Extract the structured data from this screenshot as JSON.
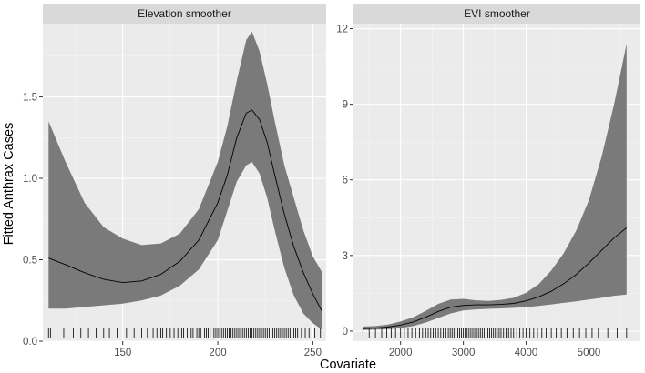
{
  "xlabel": "Covariate",
  "ylabel": "Fitted Anthrax Cases",
  "colors": {
    "panel_bg": "#ebebeb",
    "strip_bg": "#d9d9d9",
    "grid_major": "#ffffff",
    "ribbon": "#7a7a7a",
    "line": "#000000",
    "rug": "#000000"
  },
  "chart_data": [
    {
      "type": "line",
      "title": "Elevation smoother",
      "xlim": [
        108,
        257
      ],
      "ylim": [
        0,
        1.95
      ],
      "xticks": [
        150,
        200,
        250
      ],
      "yticks": [
        0.0,
        0.5,
        1.0,
        1.5
      ],
      "ytick_labels": [
        "0.0",
        "0.5",
        "1.0",
        "1.5"
      ],
      "x": [
        111,
        120,
        130,
        140,
        150,
        160,
        170,
        180,
        190,
        200,
        205,
        210,
        215,
        218,
        222,
        226,
        230,
        235,
        240,
        245,
        250,
        255
      ],
      "fit": [
        0.51,
        0.47,
        0.42,
        0.38,
        0.36,
        0.37,
        0.41,
        0.49,
        0.62,
        0.85,
        1.02,
        1.25,
        1.4,
        1.42,
        1.36,
        1.22,
        1.02,
        0.78,
        0.58,
        0.42,
        0.29,
        0.18
      ],
      "lower": [
        0.2,
        0.2,
        0.21,
        0.22,
        0.23,
        0.25,
        0.28,
        0.34,
        0.44,
        0.62,
        0.8,
        0.98,
        1.08,
        1.1,
        1.03,
        0.88,
        0.68,
        0.45,
        0.28,
        0.17,
        0.11,
        0.07
      ],
      "upper": [
        1.35,
        1.1,
        0.85,
        0.7,
        0.63,
        0.59,
        0.6,
        0.66,
        0.81,
        1.1,
        1.32,
        1.6,
        1.85,
        1.9,
        1.78,
        1.58,
        1.35,
        1.08,
        0.88,
        0.68,
        0.52,
        0.42
      ],
      "rug": [
        111,
        112,
        119,
        124,
        128,
        132,
        136,
        140,
        143,
        147,
        152,
        156,
        160,
        163,
        166,
        168,
        170,
        171,
        173,
        175,
        177,
        179,
        181,
        182,
        184,
        186,
        187,
        189,
        190,
        191,
        193,
        194,
        195,
        196,
        198,
        199,
        200,
        201,
        202,
        203,
        204,
        205,
        206,
        207,
        208,
        209,
        210,
        211,
        212,
        213,
        214,
        215,
        216,
        217,
        218,
        219,
        220,
        221,
        222,
        223,
        224,
        225,
        226,
        227,
        228,
        229,
        230,
        231,
        232,
        233,
        234,
        235,
        236,
        237,
        238,
        239,
        240,
        241,
        242,
        244,
        246,
        248,
        251,
        254
      ]
    },
    {
      "type": "line",
      "title": "EVI smoother",
      "xlim": [
        1250,
        5820
      ],
      "ylim": [
        -0.4,
        12.2
      ],
      "xticks": [
        2000,
        3000,
        4000,
        5000
      ],
      "yticks": [
        0,
        3,
        6,
        9,
        12
      ],
      "ytick_labels": [
        "0",
        "3",
        "6",
        "9",
        "12"
      ],
      "x": [
        1400,
        1600,
        1800,
        2000,
        2200,
        2400,
        2600,
        2800,
        3000,
        3200,
        3400,
        3600,
        3800,
        4000,
        4200,
        4400,
        4600,
        4800,
        5000,
        5200,
        5400,
        5600
      ],
      "fit": [
        0.1,
        0.12,
        0.16,
        0.24,
        0.36,
        0.55,
        0.78,
        0.95,
        1.02,
        1.04,
        1.04,
        1.06,
        1.1,
        1.2,
        1.36,
        1.58,
        1.88,
        2.25,
        2.7,
        3.2,
        3.7,
        4.1
      ],
      "lower": [
        0.04,
        0.06,
        0.08,
        0.12,
        0.2,
        0.34,
        0.52,
        0.7,
        0.82,
        0.86,
        0.88,
        0.9,
        0.92,
        0.95,
        1.0,
        1.06,
        1.12,
        1.18,
        1.25,
        1.32,
        1.4,
        1.45
      ],
      "upper": [
        0.18,
        0.2,
        0.26,
        0.38,
        0.55,
        0.8,
        1.08,
        1.25,
        1.28,
        1.22,
        1.2,
        1.24,
        1.32,
        1.52,
        1.86,
        2.4,
        3.1,
        4.0,
        5.2,
        6.9,
        9.0,
        11.4
      ],
      "rug": [
        1400,
        1500,
        1600,
        1700,
        1780,
        1850,
        1920,
        2000,
        2060,
        2120,
        2180,
        2240,
        2300,
        2350,
        2400,
        2440,
        2480,
        2520,
        2560,
        2600,
        2640,
        2680,
        2720,
        2760,
        2790,
        2820,
        2850,
        2880,
        2910,
        2940,
        2970,
        3000,
        3030,
        3060,
        3090,
        3120,
        3150,
        3180,
        3210,
        3240,
        3270,
        3300,
        3330,
        3360,
        3390,
        3420,
        3450,
        3480,
        3510,
        3540,
        3570,
        3600,
        3640,
        3680,
        3720,
        3760,
        3800,
        3850,
        3900,
        3950,
        4000,
        4060,
        4120,
        4180,
        4250,
        4320,
        4400,
        4480,
        4560,
        4650,
        4750,
        4850,
        4950,
        5050,
        5150,
        5300,
        5450,
        5600
      ]
    }
  ]
}
